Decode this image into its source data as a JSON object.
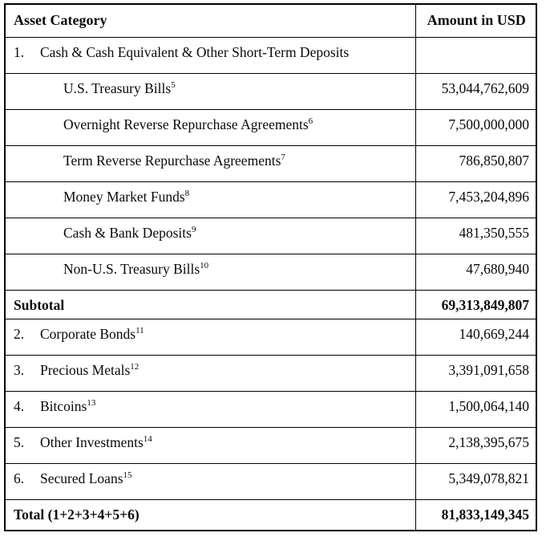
{
  "columns": {
    "asset_category": "Asset Category",
    "amount_usd": "Amount in USD"
  },
  "rows": [
    {
      "num": "1.",
      "label": "Cash & Cash Equivalent & Other Short-Term Deposits",
      "amount": ""
    },
    {
      "label": "U.S. Treasury Bills",
      "sup": "5",
      "amount": "53,044,762,609"
    },
    {
      "label": "Overnight Reverse Repurchase Agreements",
      "sup": "6",
      "amount": "7,500,000,000"
    },
    {
      "label": "Term Reverse Repurchase Agreements",
      "sup": "7",
      "amount": "786,850,807"
    },
    {
      "label": "Money Market Funds",
      "sup": "8",
      "amount": "7,453,204,896"
    },
    {
      "label": "Cash & Bank Deposits",
      "sup": "9",
      "amount": "481,350,555"
    },
    {
      "label": "Non-U.S. Treasury Bills",
      "sup": "10",
      "amount": "47,680,940"
    },
    {
      "label": "Subtotal",
      "amount": "69,313,849,807"
    },
    {
      "num": "2.",
      "label": "Corporate Bonds",
      "sup": "11",
      "amount": "140,669,244"
    },
    {
      "num": "3.",
      "label": "Precious Metals",
      "sup": "12",
      "amount": "3,391,091,658"
    },
    {
      "num": "4.",
      "label": "Bitcoins",
      "sup": "13",
      "amount": "1,500,064,140"
    },
    {
      "num": "5.",
      "label": "Other Investments",
      "sup": "14",
      "amount": "2,138,395,675"
    },
    {
      "num": "6.",
      "label": "Secured Loans",
      "sup": "15",
      "amount": "5,349,078,821"
    },
    {
      "label": "Total (1+2+3+4+5+6)",
      "amount": "81,833,149,345"
    }
  ]
}
